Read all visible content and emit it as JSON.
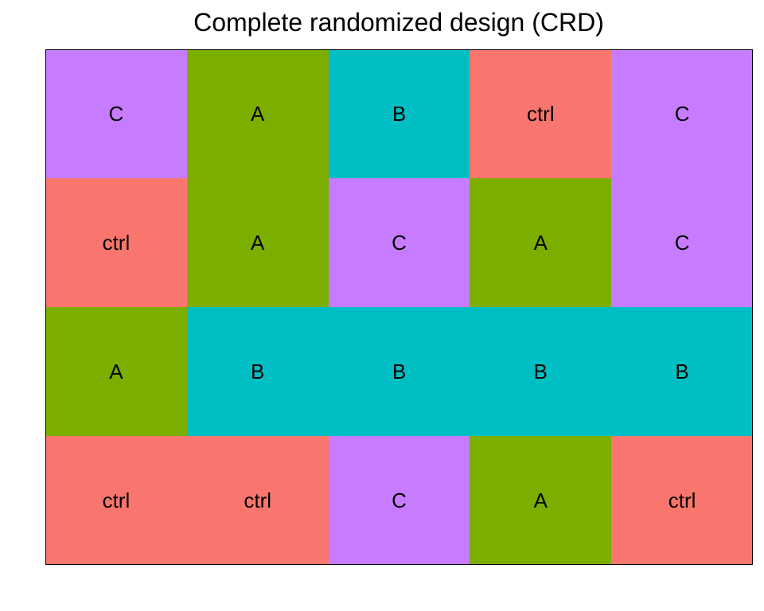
{
  "chart_data": {
    "type": "heatmap",
    "title": "Complete randomized design (CRD)",
    "xlabel": "",
    "ylabel": "",
    "n_rows": 4,
    "n_cols": 5,
    "treatments": [
      "ctrl",
      "A",
      "B",
      "C"
    ],
    "treatment_colors": {
      "ctrl": "#F8766D",
      "A": "#7CAE00",
      "B": "#00BFC4",
      "C": "#C77CFF"
    },
    "cells": [
      [
        "C",
        "A",
        "B",
        "ctrl",
        "C"
      ],
      [
        "ctrl",
        "A",
        "C",
        "A",
        "C"
      ],
      [
        "A",
        "B",
        "B",
        "B",
        "B"
      ],
      [
        "ctrl",
        "ctrl",
        "C",
        "A",
        "ctrl"
      ]
    ],
    "legend": "none",
    "grid": false
  }
}
